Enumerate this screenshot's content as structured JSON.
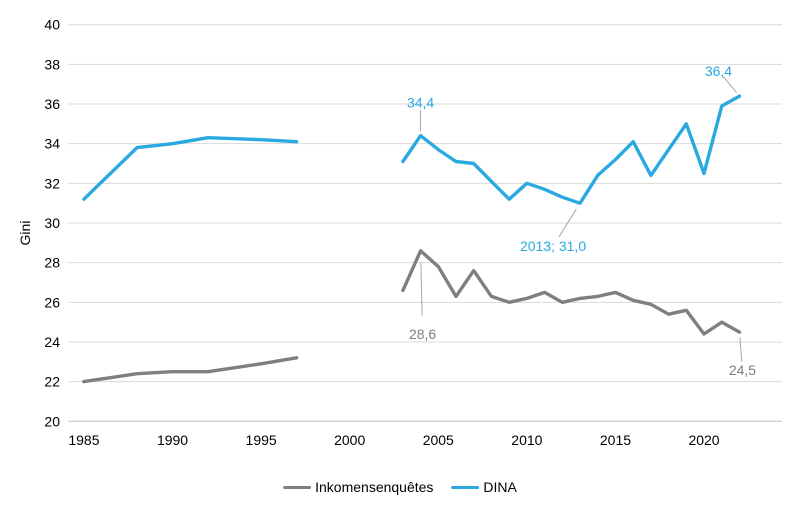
{
  "colors": {
    "dina": "#29A9E0",
    "survey": "#7F7F7F",
    "gridline": "#D9D9D9",
    "axis_line": "#BFBFBF",
    "leader": "#A6A6A6",
    "text": "#000000",
    "background": "#FFFFFF"
  },
  "legend": {
    "items": [
      {
        "label": "Inkomensenquêtes"
      },
      {
        "label": "DINA"
      }
    ]
  },
  "chart_data": {
    "type": "line",
    "title": "",
    "xlabel": "",
    "ylabel": "Gini",
    "ylim": [
      20,
      40
    ],
    "ytick_step": 2,
    "yticks": [
      20,
      22,
      24,
      26,
      28,
      30,
      32,
      34,
      36,
      38,
      40
    ],
    "xticks": [
      1985,
      1990,
      1995,
      2000,
      2005,
      2010,
      2015,
      2020
    ],
    "xlim": [
      1984.1,
      2024.4
    ],
    "grid": "horizontal",
    "legend_position": "bottom-center",
    "series": [
      {
        "name": "Inkomensenquêtes",
        "color": "#7F7F7F",
        "segments": [
          {
            "years": [
              1985,
              1988,
              1990,
              1992,
              1995,
              1997
            ],
            "values": [
              22.0,
              22.4,
              22.5,
              22.5,
              22.9,
              23.2
            ]
          },
          {
            "years": [
              2003,
              2004,
              2005,
              2006,
              2007,
              2008,
              2009,
              2010,
              2011,
              2012,
              2013,
              2014,
              2015,
              2016,
              2017,
              2018,
              2019,
              2020,
              2021,
              2022
            ],
            "values": [
              26.6,
              28.6,
              27.8,
              26.3,
              27.6,
              26.3,
              26.0,
              26.2,
              26.5,
              26.0,
              26.2,
              26.3,
              26.5,
              26.1,
              25.9,
              25.4,
              25.6,
              24.4,
              25.0,
              24.5
            ]
          }
        ]
      },
      {
        "name": "DINA",
        "color": "#29A9E0",
        "segments": [
          {
            "years": [
              1985,
              1988,
              1990,
              1992,
              1995,
              1997
            ],
            "values": [
              31.2,
              33.8,
              34.0,
              34.3,
              34.2,
              34.1
            ]
          },
          {
            "years": [
              2003,
              2004,
              2005,
              2006,
              2007,
              2008,
              2009,
              2010,
              2011,
              2012,
              2013,
              2014,
              2015,
              2016,
              2017,
              2018,
              2019,
              2020,
              2021,
              2022
            ],
            "values": [
              33.1,
              34.4,
              33.7,
              33.1,
              33.0,
              32.1,
              31.2,
              32.0,
              31.7,
              31.3,
              31.0,
              32.4,
              33.2,
              34.1,
              32.4,
              33.7,
              35.0,
              32.5,
              35.9,
              36.4
            ]
          }
        ]
      }
    ],
    "annotations": [
      {
        "text": "34,4",
        "series": "DINA",
        "year": 2004,
        "value": 34.4,
        "offset": [
          0,
          -33
        ],
        "color": "#29A9E0"
      },
      {
        "text": "2013; 31,0",
        "series": "DINA",
        "year": 2013,
        "value": 31.0,
        "offset": [
          -27,
          43
        ],
        "color": "#29A9E0"
      },
      {
        "text": "36,4",
        "series": "DINA",
        "year": 2022,
        "value": 36.4,
        "offset": [
          -21,
          -25
        ],
        "color": "#29A9E0"
      },
      {
        "text": "28,6",
        "series": "Inkomensenquêtes",
        "year": 2004,
        "value": 28.6,
        "offset": [
          2,
          83
        ],
        "color": "#7F7F7F"
      },
      {
        "text": "24,5",
        "series": "Inkomensenquêtes",
        "year": 2022,
        "value": 24.5,
        "offset": [
          3,
          38
        ],
        "color": "#7F7F7F"
      }
    ]
  }
}
